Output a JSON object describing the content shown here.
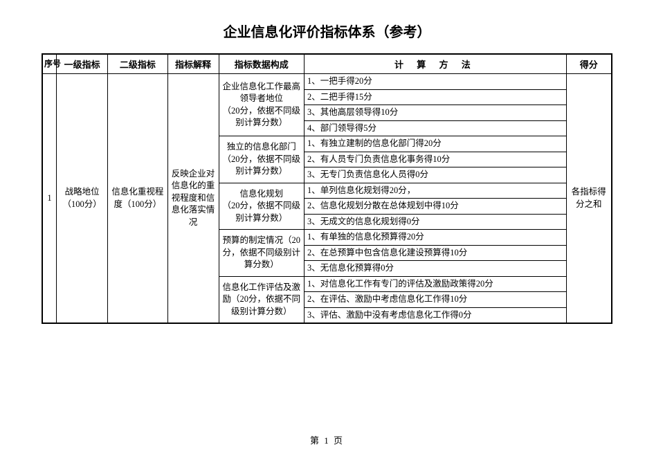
{
  "title": "企业信息化评价指标体系（参考）",
  "headers": {
    "seq": "序号",
    "level1": "一级指标",
    "level2": "二级指标",
    "explain": "指标解释",
    "dataComp": "指标数据构成",
    "calc": "计 算 方 法",
    "score": "得分"
  },
  "row": {
    "seq": "1",
    "level1": "战略地位（100分）",
    "level2": "信息化重视程度（100分）",
    "explain": "反映企业对信息化的重视程度和信息化落实情况",
    "score": "各指标得分之和",
    "groups": [
      {
        "data": "企业信息化工作最高领导者地位　　　　（20分，依据不同级别计算分数）",
        "items": [
          "1、一把手得20分",
          "2、二把手得15分",
          "3、其他高层领导得10分",
          "4、部门领导得5分"
        ]
      },
      {
        "data": "独立的信息化部门（20分，依据不同级别计算分数）",
        "items": [
          "1、有独立建制的信息化部门得20分",
          "2、有人员专门负责信息化事务得10分",
          "3、无专门负责信息化人员得0分"
        ]
      },
      {
        "data": "信息化规划　　　　（20分，依据不同级别计算分数）",
        "items": [
          "1、单列信息化规划得20分，",
          "2、信息化规划分散在总体规划中得10分",
          "3、无成文的信息化规划得0分"
        ]
      },
      {
        "data": "预算的制定情况（20分，依据不同级别计算分数）",
        "items": [
          "1、有单独的信息化预算得20分",
          "2、在总预算中包含信息化建设预算得10分",
          "3、无信息化预算得0分"
        ]
      },
      {
        "data": "信息化工作评估及激励（20分，依据不同级别计算分数）",
        "items": [
          "1、对信息化工作有专门的评估及激励政策得20分",
          "2、在评估、激励中考虑信息化工作得10分",
          "3、评估、激励中没有考虑信息化工作得0分"
        ]
      }
    ]
  },
  "pageNum": "第 1 页"
}
